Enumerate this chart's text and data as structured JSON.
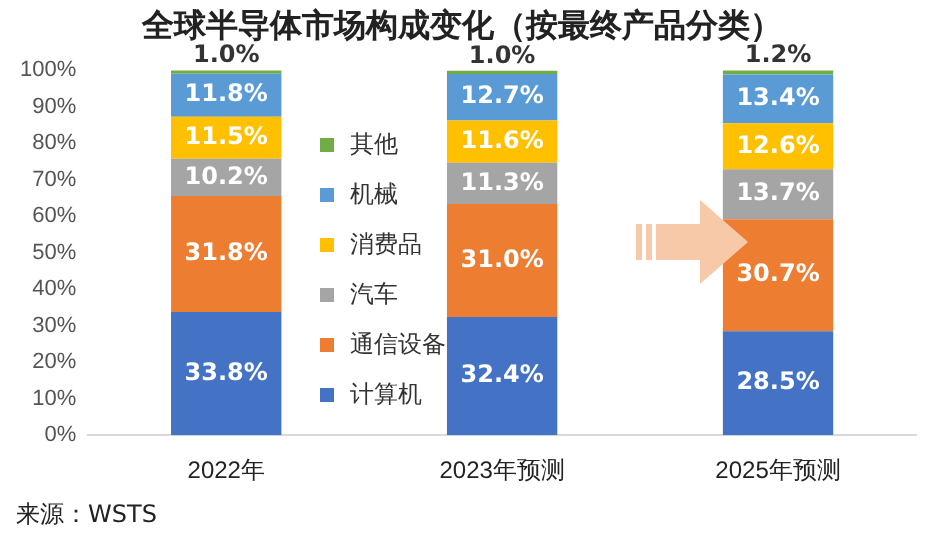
{
  "chart_data": {
    "type": "bar",
    "title": "全球半导体市场构成变化（按最终产品分类）",
    "categories": [
      "2022年",
      "2023年预测",
      "2025年预测"
    ],
    "stacked": true,
    "legend": "center",
    "ylim": [
      0,
      100
    ],
    "yticks": [
      {
        "value": 0,
        "label": "0%"
      },
      {
        "value": 10,
        "label": "10%"
      },
      {
        "value": 20,
        "label": "20%"
      },
      {
        "value": 30,
        "label": "30%"
      },
      {
        "value": 40,
        "label": "40%"
      },
      {
        "value": 50,
        "label": "50%"
      },
      {
        "value": 60,
        "label": "60%"
      },
      {
        "value": 70,
        "label": "70%"
      },
      {
        "value": 80,
        "label": "80%"
      },
      {
        "value": 90,
        "label": "90%"
      },
      {
        "value": 100,
        "label": "100%"
      }
    ],
    "series": [
      {
        "name": "计算机",
        "color": "#4472c4",
        "values": [
          33.8,
          32.4,
          28.5
        ],
        "value_labels": [
          "33.8%",
          "32.4%",
          "28.5%"
        ]
      },
      {
        "name": "通信设备",
        "color": "#ed7d31",
        "values": [
          31.8,
          31.0,
          30.7
        ],
        "value_labels": [
          "31.8%",
          "31.0%",
          "30.7%"
        ]
      },
      {
        "name": "汽车",
        "color": "#a5a5a5",
        "values": [
          10.2,
          11.3,
          13.7
        ],
        "value_labels": [
          "10.2%",
          "11.3%",
          "13.7%"
        ]
      },
      {
        "name": "消费品",
        "color": "#ffc000",
        "values": [
          11.5,
          11.6,
          12.6
        ],
        "value_labels": [
          "11.5%",
          "11.6%",
          "12.6%"
        ]
      },
      {
        "name": "机械",
        "color": "#5b9bd5",
        "values": [
          11.8,
          12.7,
          13.4
        ],
        "value_labels": [
          "11.8%",
          "12.7%",
          "13.4%"
        ]
      },
      {
        "name": "其他",
        "color": "#70ad47",
        "values": [
          1.0,
          1.0,
          1.2
        ],
        "value_labels": [
          "1.0%",
          "1.0%",
          "1.2%"
        ]
      }
    ],
    "grid": false,
    "annotations": [
      "来源：WSTS"
    ]
  }
}
